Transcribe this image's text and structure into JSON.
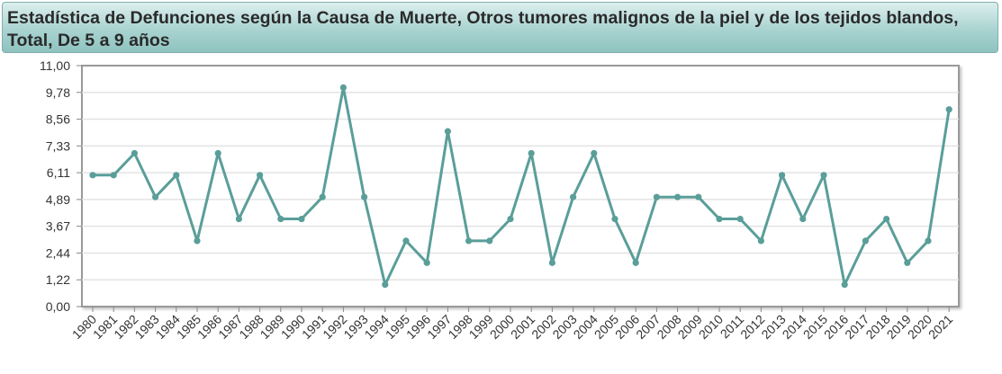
{
  "title": "Estadística de Defunciones según la Causa de Muerte, Otros tumores malignos de la piel y de los tejidos blandos, Total, De 5 a 9 años",
  "colors": {
    "line": "#5a9e99",
    "grid": "#e3e3e3",
    "frame": "#9a9a9a",
    "title_bg": "#a9d3d0"
  },
  "chart_data": {
    "type": "line",
    "title": "Estadística de Defunciones según la Causa de Muerte, Otros tumores malignos de la piel y de los tejidos blandos, Total, De 5 a 9 años",
    "xlabel": "",
    "ylabel": "",
    "ylim": [
      0,
      11
    ],
    "y_ticks": [
      "0,00",
      "1,22",
      "2,44",
      "3,67",
      "4,89",
      "6,11",
      "7,33",
      "8,56",
      "9,78",
      "11,00"
    ],
    "grid": true,
    "legend": "none",
    "categories": [
      "1980",
      "1981",
      "1982",
      "1983",
      "1984",
      "1985",
      "1986",
      "1987",
      "1988",
      "1989",
      "1990",
      "1991",
      "1992",
      "1993",
      "1994",
      "1995",
      "1996",
      "1997",
      "1998",
      "1999",
      "2000",
      "2001",
      "2002",
      "2003",
      "2004",
      "2005",
      "2006",
      "2007",
      "2008",
      "2009",
      "2010",
      "2011",
      "2012",
      "2013",
      "2014",
      "2015",
      "2016",
      "2017",
      "2018",
      "2019",
      "2020",
      "2021"
    ],
    "series": [
      {
        "values": [
          6,
          6,
          7,
          5,
          6,
          3,
          7,
          4,
          6,
          4,
          4,
          5,
          10,
          5,
          1,
          3,
          2,
          8,
          3,
          3,
          4,
          7,
          2,
          5,
          7,
          4,
          2,
          5,
          5,
          5,
          4,
          4,
          3,
          6,
          4,
          6,
          1,
          3,
          4,
          2,
          3,
          9
        ]
      }
    ]
  }
}
